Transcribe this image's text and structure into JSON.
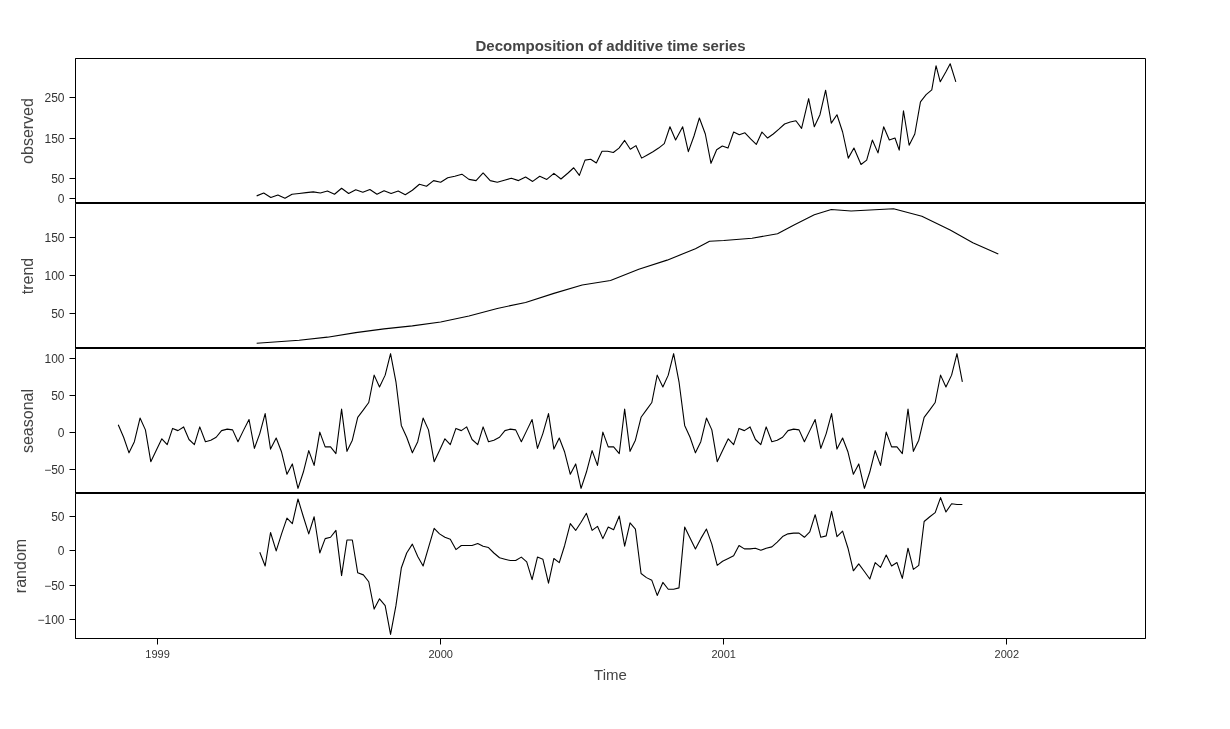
{
  "chart_data": [
    {
      "type": "line",
      "title": "Decomposition of additive time series",
      "ylabel": "observed",
      "tick_labels": "y",
      "xlim": [
        1998.71,
        2002.49
      ],
      "ylim": [
        -13,
        348
      ],
      "yticks": [
        0,
        50,
        150,
        250
      ],
      "series": [
        {
          "color": "#000000",
          "x": [
            1999.35,
            1999.375,
            1999.4,
            1999.425,
            1999.45,
            1999.475,
            1999.5,
            1999.525,
            1999.55,
            1999.575,
            1999.6,
            1999.625,
            1999.65,
            1999.675,
            1999.7,
            1999.725,
            1999.75,
            1999.775,
            1999.8,
            1999.825,
            1999.85,
            1999.875,
            1999.9,
            1999.925,
            1999.95,
            1999.975,
            2000.0,
            2000.025,
            2000.05,
            2000.075,
            2000.1,
            2000.125,
            2000.15,
            2000.175,
            2000.2,
            2000.225,
            2000.25,
            2000.275,
            2000.3,
            2000.325,
            2000.35,
            2000.375,
            2000.4,
            2000.425,
            2000.45,
            2000.47,
            2000.49,
            2000.51,
            2000.53,
            2000.55,
            2000.57,
            2000.59,
            2000.61,
            2000.63,
            2000.65,
            2000.67,
            2000.69,
            2000.71,
            2000.73,
            2000.75,
            2000.77,
            2000.79,
            2000.81,
            2000.83,
            2000.855,
            2000.875,
            2000.895,
            2000.914,
            2000.935,
            2000.955,
            2000.975,
            2000.995,
            2001.015,
            2001.035,
            2001.055,
            2001.075,
            2001.095,
            2001.115,
            2001.135,
            2001.155,
            2001.175,
            2001.195,
            2001.215,
            2001.235,
            2001.255,
            2001.275,
            2001.3,
            2001.32,
            2001.34,
            2001.36,
            2001.38,
            2001.4,
            2001.42,
            2001.44,
            2001.46,
            2001.485,
            2001.505,
            2001.525,
            2001.545,
            2001.565,
            2001.585,
            2001.605,
            2001.62,
            2001.635,
            2001.655,
            2001.675,
            2001.695,
            2001.715,
            2001.735,
            2001.75,
            2001.765,
            2001.785,
            2001.8,
            2001.82
          ],
          "values": [
            6,
            13,
            2,
            8,
            0,
            10,
            12,
            14,
            16,
            13,
            18,
            10,
            25,
            12,
            21,
            15,
            22,
            10,
            19,
            12,
            18,
            9,
            20,
            35,
            30,
            44,
            40,
            51,
            55,
            60,
            47,
            44,
            63,
            44,
            40,
            45,
            50,
            44,
            53,
            42,
            55,
            47,
            62,
            48,
            63,
            76,
            57,
            95,
            97,
            88,
            117,
            117,
            114,
            125,
            144,
            122,
            131,
            100,
            108,
            116,
            125,
            136,
            178,
            145,
            178,
            116,
            155,
            200,
            160,
            87,
            121,
            130,
            125,
            165,
            158,
            163,
            148,
            134,
            165,
            150,
            160,
            172,
            185,
            190,
            193,
            174,
            248,
            178,
            208,
            269,
            187,
            208,
            165,
            100,
            125,
            84,
            95,
            145,
            113,
            178,
            145,
            150,
            120,
            218,
            132,
            160,
            240,
            258,
            270,
            330,
            290,
            315,
            335,
            290
          ]
        }
      ]
    },
    {
      "type": "line",
      "ylabel": "trend",
      "tick_labels": "y",
      "xlim": [
        1998.71,
        2002.49
      ],
      "ylim": [
        3,
        195
      ],
      "yticks": [
        50,
        100,
        150
      ],
      "series": [
        {
          "color": "#000000",
          "x": [
            1999.35,
            1999.5,
            1999.6,
            1999.7,
            1999.8,
            1999.9,
            2000.0,
            2000.1,
            2000.2,
            2000.3,
            2000.4,
            2000.5,
            2000.6,
            2000.7,
            2000.8,
            2000.9,
            2000.95,
            2001.0,
            2001.1,
            2001.19,
            2001.25,
            2001.32,
            2001.38,
            2001.45,
            2001.55,
            2001.6,
            2001.7,
            2001.8,
            2001.88,
            2001.97
          ],
          "values": [
            10,
            14,
            18,
            24,
            29,
            33,
            38,
            46,
            56,
            64,
            76,
            87,
            93,
            108,
            120,
            135,
            145,
            146,
            149,
            155,
            167,
            180,
            187,
            185,
            187,
            188,
            178,
            160,
            143,
            128
          ]
        }
      ]
    },
    {
      "type": "line",
      "ylabel": "seasonal",
      "tick_labels": "y",
      "xlim": [
        1998.71,
        2002.49
      ],
      "ylim": [
        -82,
        114
      ],
      "yticks": [
        -50,
        0,
        50,
        100
      ],
      "series": [
        {
          "color": "#000000",
          "x": [
            1998.861,
            1998.88,
            1998.899,
            1998.918,
            1998.938,
            1998.957,
            1998.976,
            1998.995,
            1999.015,
            1999.034,
            1999.053,
            1999.072,
            1999.092,
            1999.111,
            1999.13,
            1999.149,
            1999.169,
            1999.188,
            1999.207,
            1999.226,
            1999.246,
            1999.265,
            1999.284,
            1999.303,
            1999.323,
            1999.342,
            1999.361,
            1999.38,
            1999.399,
            1999.419,
            1999.438,
            1999.457,
            1999.476,
            1999.496,
            1999.515,
            1999.534,
            1999.553,
            1999.573,
            1999.592,
            1999.611,
            1999.63,
            1999.65,
            1999.669,
            1999.688,
            1999.707,
            1999.727,
            1999.746,
            1999.765,
            1999.784,
            1999.804,
            1999.823,
            1999.842,
            1999.861,
            1999.88,
            1999.9,
            1999.919,
            1999.938,
            1999.957,
            1999.977,
            1999.996,
            2000.015,
            2000.034,
            2000.054,
            2000.073,
            2000.092,
            2000.111,
            2000.131,
            2000.15,
            2000.169,
            2000.188,
            2000.208,
            2000.227,
            2000.246,
            2000.265,
            2000.285,
            2000.304,
            2000.323,
            2000.342,
            2000.361,
            2000.381,
            2000.4,
            2000.419,
            2000.438,
            2000.458,
            2000.477,
            2000.496,
            2000.515,
            2000.535,
            2000.554,
            2000.573,
            2000.592,
            2000.611,
            2000.631,
            2000.65,
            2000.669,
            2000.688,
            2000.708,
            2000.727,
            2000.746,
            2000.765,
            2000.785,
            2000.804,
            2000.823,
            2000.842,
            2000.862,
            2000.881,
            2000.9,
            2000.919,
            2000.939,
            2000.958,
            2000.977,
            2000.996,
            2001.016,
            2001.035,
            2001.054,
            2001.073,
            2001.093,
            2001.112,
            2001.131,
            2001.15,
            2001.17,
            2001.189,
            2001.208,
            2001.227,
            2001.247,
            2001.266,
            2001.285,
            2001.304,
            2001.323,
            2001.343,
            2001.362,
            2001.381,
            2001.4,
            2001.42,
            2001.439,
            2001.458,
            2001.477,
            2001.497,
            2001.516,
            2001.535,
            2001.554,
            2001.574,
            2001.593,
            2001.612,
            2001.631,
            2001.651,
            2001.67,
            2001.689,
            2001.708,
            2001.728,
            2001.747,
            2001.766,
            2001.785,
            2001.805,
            2001.824,
            2001.843
          ],
          "values": [
            11,
            -6,
            -27,
            -12,
            20,
            4,
            -39,
            -24,
            -8,
            -16,
            6,
            3,
            8,
            -9,
            -16,
            8,
            -12,
            -10,
            -6,
            3,
            5,
            4,
            -12,
            3,
            18,
            -21,
            -1,
            26,
            -22,
            -7,
            -26,
            -56,
            -42,
            -75,
            -53,
            -24,
            -44,
            1,
            -19,
            -19,
            -28,
            32,
            -25,
            -10,
            21,
            31,
            41,
            78,
            62,
            78,
            107,
            69,
            10,
            -6,
            -27,
            -12,
            20,
            4,
            -39,
            -24,
            -8,
            -16,
            6,
            3,
            8,
            -9,
            -16,
            8,
            -12,
            -10,
            -6,
            3,
            5,
            4,
            -12,
            3,
            18,
            -21,
            -1,
            26,
            -22,
            -7,
            -26,
            -56,
            -42,
            -75,
            -53,
            -24,
            -44,
            1,
            -19,
            -19,
            -28,
            32,
            -25,
            -10,
            21,
            31,
            41,
            78,
            62,
            78,
            107,
            69,
            10,
            -6,
            -27,
            -12,
            20,
            4,
            -39,
            -24,
            -8,
            -16,
            6,
            3,
            8,
            -9,
            -16,
            8,
            -12,
            -10,
            -6,
            3,
            5,
            4,
            -12,
            3,
            18,
            -21,
            -1,
            26,
            -22,
            -7,
            -26,
            -56,
            -42,
            -75,
            -53,
            -24,
            -44,
            1,
            -19,
            -19,
            -28,
            32,
            -25,
            -10,
            21,
            31,
            41,
            78,
            62,
            78,
            107,
            69
          ]
        }
      ]
    },
    {
      "type": "line",
      "ylabel": "random",
      "xlabel": "Time",
      "xlim": [
        1998.71,
        2002.49
      ],
      "xticks": [
        1999,
        2000,
        2001,
        2002
      ],
      "ylim": [
        -128,
        84
      ],
      "yticks": [
        -100,
        -50,
        0,
        50
      ],
      "series": [
        {
          "color": "#000000",
          "x": [
            1999.361,
            1999.38,
            1999.399,
            1999.419,
            1999.438,
            1999.457,
            1999.476,
            1999.496,
            1999.515,
            1999.534,
            1999.553,
            1999.573,
            1999.592,
            1999.611,
            1999.63,
            1999.65,
            1999.669,
            1999.688,
            1999.707,
            1999.727,
            1999.746,
            1999.765,
            1999.784,
            1999.804,
            1999.823,
            1999.842,
            1999.861,
            1999.88,
            1999.9,
            1999.919,
            1999.938,
            1999.957,
            1999.977,
            1999.996,
            2000.015,
            2000.034,
            2000.054,
            2000.073,
            2000.092,
            2000.111,
            2000.131,
            2000.15,
            2000.169,
            2000.188,
            2000.208,
            2000.227,
            2000.246,
            2000.265,
            2000.285,
            2000.304,
            2000.323,
            2000.342,
            2000.361,
            2000.381,
            2000.4,
            2000.419,
            2000.438,
            2000.458,
            2000.477,
            2000.496,
            2000.515,
            2000.535,
            2000.554,
            2000.573,
            2000.592,
            2000.611,
            2000.631,
            2000.65,
            2000.669,
            2000.688,
            2000.708,
            2000.727,
            2000.746,
            2000.765,
            2000.785,
            2000.804,
            2000.823,
            2000.842,
            2000.862,
            2000.881,
            2000.9,
            2000.919,
            2000.939,
            2000.958,
            2000.977,
            2000.996,
            2001.016,
            2001.035,
            2001.054,
            2001.073,
            2001.093,
            2001.112,
            2001.131,
            2001.15,
            2001.17,
            2001.189,
            2001.208,
            2001.227,
            2001.247,
            2001.266,
            2001.285,
            2001.304,
            2001.323,
            2001.343,
            2001.362,
            2001.381,
            2001.4,
            2001.42,
            2001.439,
            2001.458,
            2001.477,
            2001.497,
            2001.516,
            2001.535,
            2001.554,
            2001.574,
            2001.593,
            2001.612,
            2001.631,
            2001.651,
            2001.67,
            2001.689,
            2001.708,
            2001.728,
            2001.747,
            2001.766,
            2001.785,
            2001.805,
            2001.824,
            2001.843
          ],
          "values": [
            -2,
            -22,
            27,
            0,
            25,
            48,
            40,
            76,
            50,
            25,
            50,
            -3,
            18,
            20,
            30,
            -36,
            16,
            16,
            -32,
            -35,
            -45,
            -85,
            -70,
            -80,
            -122,
            -80,
            -25,
            -3,
            10,
            -8,
            -22,
            5,
            33,
            25,
            20,
            17,
            2,
            8,
            8,
            8,
            11,
            7,
            5,
            -3,
            -10,
            -12,
            -14,
            -14,
            -9,
            -16,
            -42,
            -9,
            -12,
            -47,
            -11,
            -17,
            8,
            40,
            30,
            42,
            55,
            30,
            36,
            18,
            35,
            31,
            51,
            7,
            41,
            32,
            -33,
            -39,
            -43,
            -65,
            -46,
            -56,
            -56,
            -54,
            35,
            19,
            3,
            18,
            32,
            10,
            -21,
            -15,
            -11,
            -7,
            8,
            3,
            3,
            4,
            1,
            4,
            6,
            13,
            21,
            25,
            26,
            26,
            20,
            28,
            53,
            20,
            22,
            58,
            21,
            29,
            4,
            -29,
            -19,
            -30,
            -41,
            -17,
            -24,
            -6,
            -22,
            -17,
            -40,
            4,
            -27,
            -21,
            43,
            50,
            56,
            78,
            57,
            69,
            68,
            68
          ]
        }
      ]
    }
  ]
}
